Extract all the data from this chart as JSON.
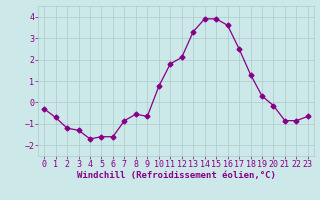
{
  "x": [
    0,
    1,
    2,
    3,
    4,
    5,
    6,
    7,
    8,
    9,
    10,
    11,
    12,
    13,
    14,
    15,
    16,
    17,
    18,
    19,
    20,
    21,
    22,
    23
  ],
  "y": [
    -0.3,
    -0.7,
    -1.2,
    -1.3,
    -1.7,
    -1.6,
    -1.6,
    -0.85,
    -0.55,
    -0.65,
    0.75,
    1.8,
    2.1,
    3.3,
    3.9,
    3.9,
    3.6,
    2.5,
    1.3,
    0.3,
    -0.15,
    -0.85,
    -0.85,
    -0.65
  ],
  "line_color": "#880088",
  "marker": "D",
  "marker_size": 2.5,
  "bg_color": "#cce8e8",
  "grid_color": "#aacccc",
  "xlabel": "Windchill (Refroidissement éolien,°C)",
  "xlabel_color": "#880088",
  "xlabel_fontsize": 6.5,
  "tick_color": "#880088",
  "tick_fontsize": 6.0,
  "ylim": [
    -2.5,
    4.5
  ],
  "xlim": [
    -0.5,
    23.5
  ],
  "yticks": [
    -2,
    -1,
    0,
    1,
    2,
    3,
    4
  ],
  "xticks": [
    0,
    1,
    2,
    3,
    4,
    5,
    6,
    7,
    8,
    9,
    10,
    11,
    12,
    13,
    14,
    15,
    16,
    17,
    18,
    19,
    20,
    21,
    22,
    23
  ]
}
